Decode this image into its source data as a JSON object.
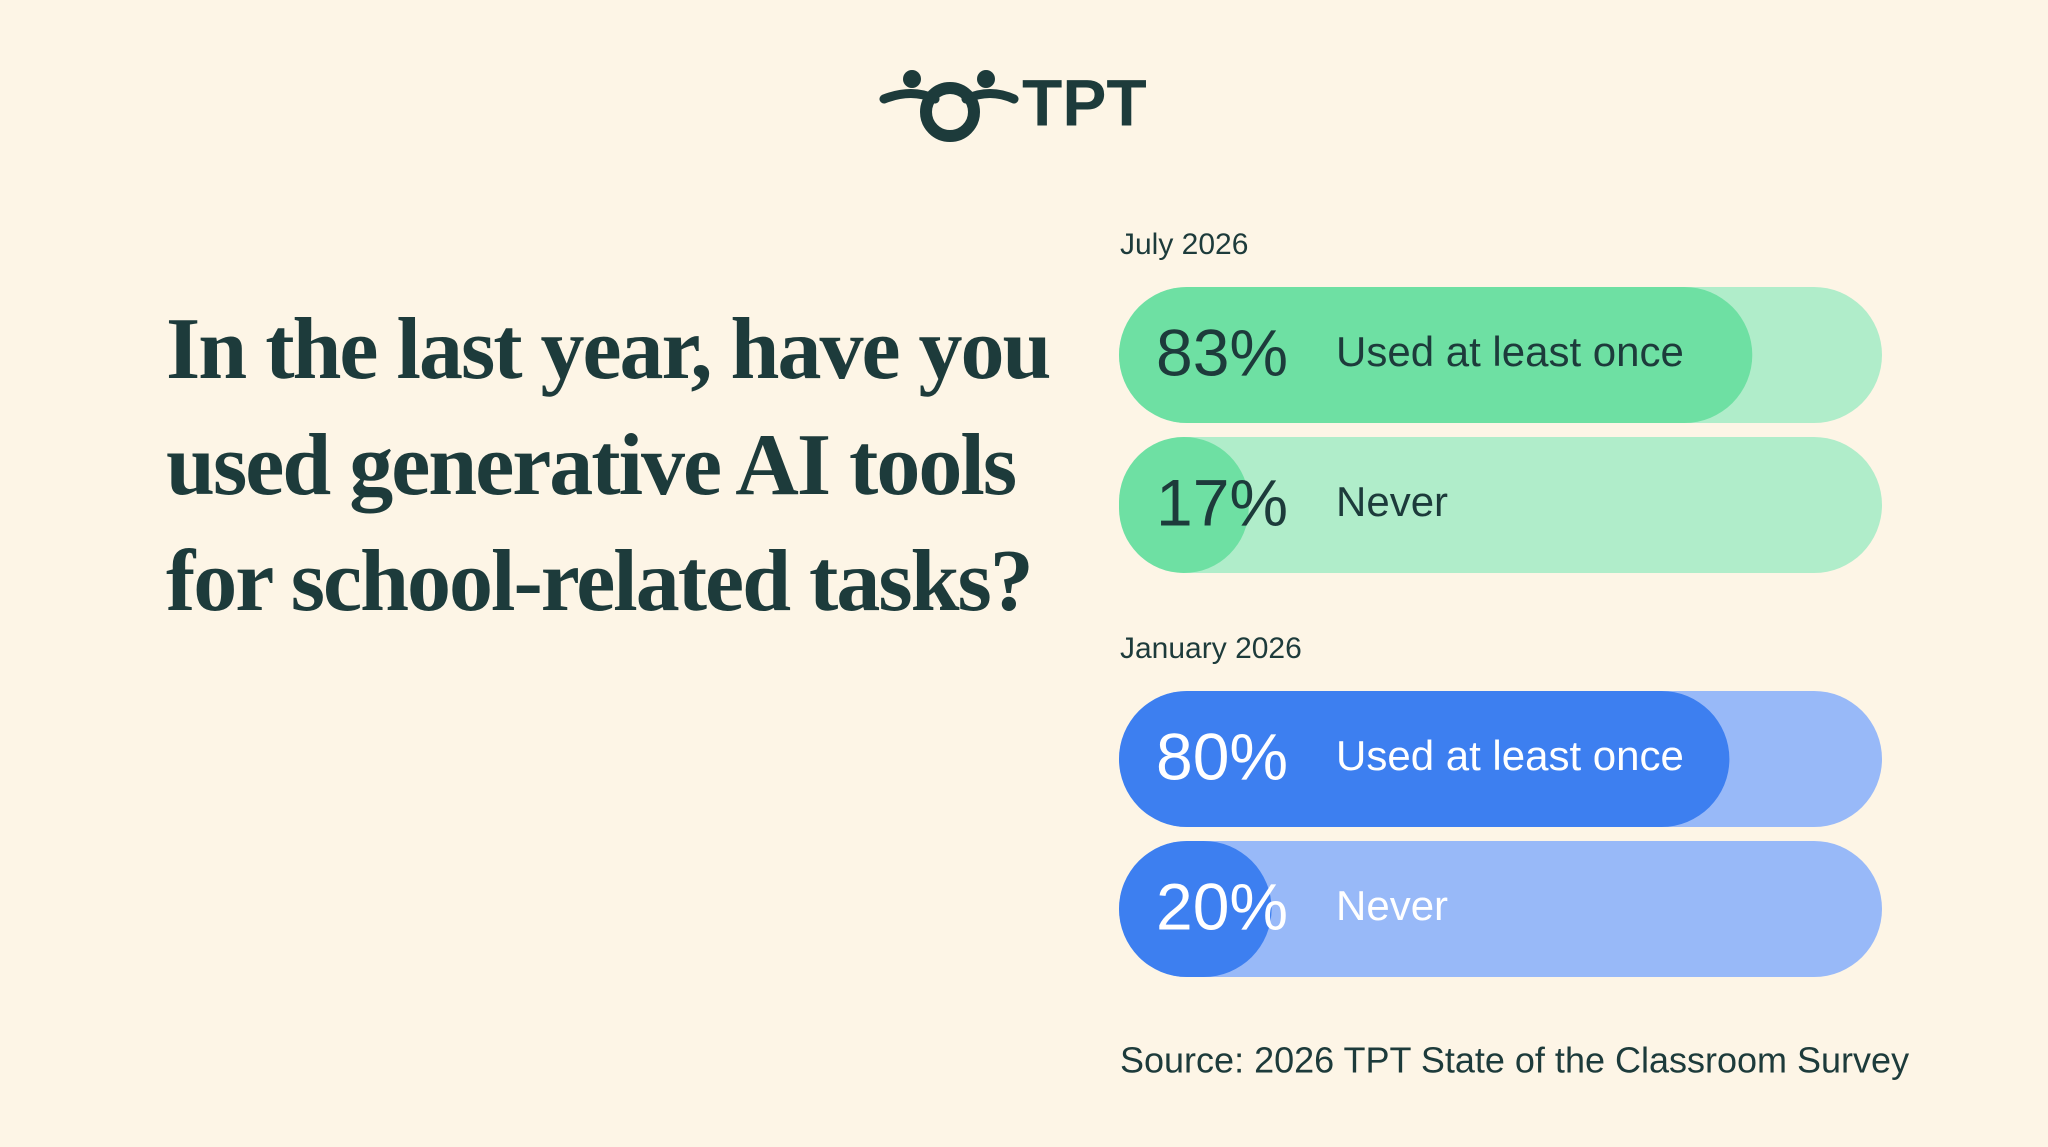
{
  "logo": "TPT",
  "chart_data": {
    "type": "bar",
    "orientation": "horizontal",
    "title": "In the last year, have you used generative AI tools for school-related tasks?",
    "xlim": [
      0,
      100
    ],
    "panels": [
      {
        "name": "July 2026",
        "categories": [
          "Used at least once",
          "Never"
        ],
        "values": [
          83,
          17
        ],
        "value_labels": [
          "83%",
          "17%"
        ],
        "color": "#6ee0a3",
        "track_color": "#b0edca",
        "text_color": "#1d3b3b"
      },
      {
        "name": "January 2026",
        "categories": [
          "Used at least once",
          "Never"
        ],
        "values": [
          80,
          20
        ],
        "value_labels": [
          "80%",
          "20%"
        ],
        "color": "#3d7ff0",
        "track_color": "#98b9f8",
        "text_color": "#ffffff"
      }
    ],
    "source": "Source: 2026 TPT State of the Classroom Survey"
  }
}
